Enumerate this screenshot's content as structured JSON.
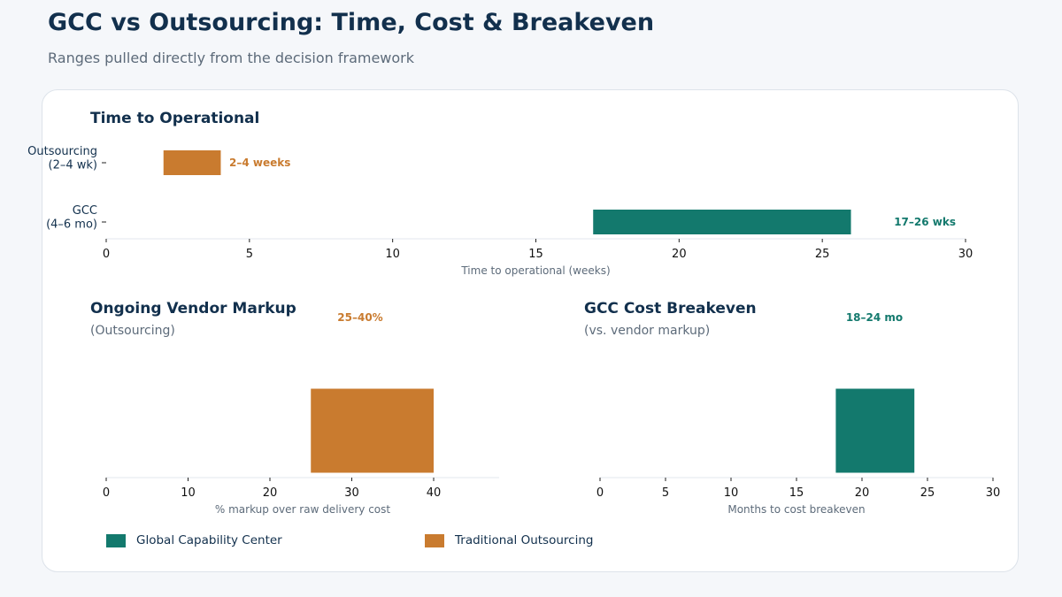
{
  "header": {
    "title": "GCC vs Outsourcing: Time, Cost & Breakeven",
    "subtitle": "Ranges pulled directly from the decision framework"
  },
  "colors": {
    "gcc": "#13796d",
    "outsourcing": "#c97b2f",
    "title": "#12304d",
    "muted": "#5d6b7a"
  },
  "legend": [
    {
      "label": "Global Capability Center",
      "color": "#13796d"
    },
    {
      "label": "Traditional Outsourcing",
      "color": "#c97b2f"
    }
  ],
  "chart_data": [
    {
      "id": "time",
      "type": "bar",
      "orientation": "horizontal",
      "title": "Time to Operational",
      "subtitle": "",
      "xlabel": "Time to operational (weeks)",
      "xlim": [
        0,
        30
      ],
      "xticks": [
        0,
        5,
        10,
        15,
        20,
        25,
        30
      ],
      "categories": [
        {
          "label_lines": [
            "Outsourcing",
            "(2–4 wk)"
          ],
          "start": 2,
          "end": 4,
          "color": "#c97b2f",
          "annotation": "2–4 weeks"
        },
        {
          "label_lines": [
            "GCC",
            "(4–6 mo)"
          ],
          "start": 17,
          "end": 26,
          "color": "#13796d",
          "annotation": "17–26 wks"
        }
      ]
    },
    {
      "id": "markup",
      "type": "bar",
      "orientation": "horizontal",
      "title": "Ongoing Vendor Markup",
      "subtitle": "(Outsourcing)",
      "xlabel": "% markup over raw delivery cost",
      "xlim": [
        0,
        48
      ],
      "xticks": [
        0,
        10,
        20,
        30,
        40
      ],
      "categories": [
        {
          "label_lines": [],
          "start": 25,
          "end": 40,
          "color": "#c97b2f",
          "annotation": "25–40%"
        }
      ]
    },
    {
      "id": "breakeven",
      "type": "bar",
      "orientation": "horizontal",
      "title": "GCC Cost Breakeven",
      "subtitle": "(vs. vendor markup)",
      "xlabel": "Months to cost breakeven",
      "xlim": [
        0,
        30
      ],
      "xticks": [
        0,
        5,
        10,
        15,
        20,
        25,
        30
      ],
      "categories": [
        {
          "label_lines": [],
          "start": 18,
          "end": 24,
          "color": "#13796d",
          "annotation": "18–24 mo"
        }
      ]
    }
  ]
}
